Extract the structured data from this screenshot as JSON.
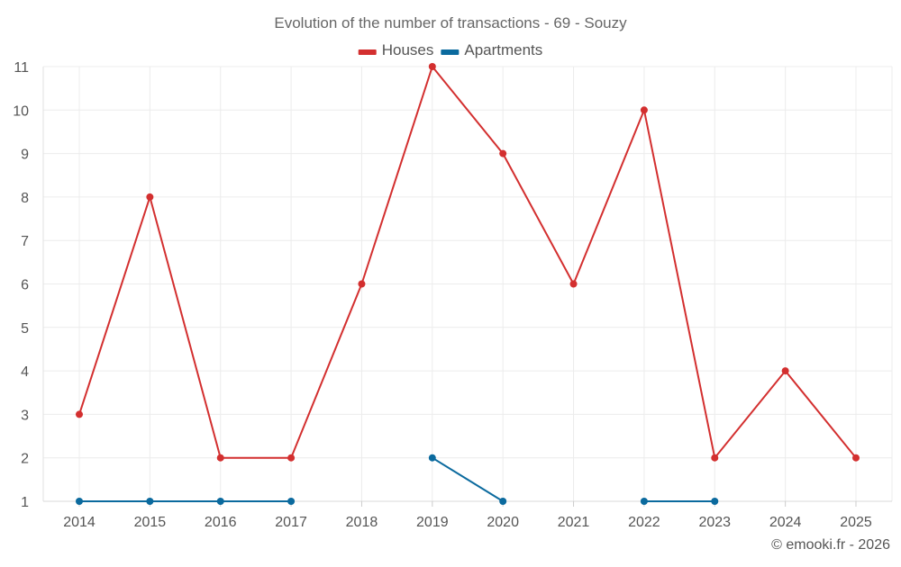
{
  "chart_data": {
    "type": "line",
    "title": "Evolution of the number of transactions - 69 - Souzy",
    "xlabel": "",
    "ylabel": "",
    "categories": [
      "2014",
      "2015",
      "2016",
      "2017",
      "2018",
      "2019",
      "2020",
      "2021",
      "2022",
      "2023",
      "2024",
      "2025"
    ],
    "ylim": [
      1,
      11
    ],
    "yticks": [
      1,
      2,
      3,
      4,
      5,
      6,
      7,
      8,
      9,
      10,
      11
    ],
    "grid": true,
    "legend_position": "top-center",
    "series": [
      {
        "name": "Houses",
        "color": "#d32f2f",
        "values": [
          3,
          8,
          2,
          2,
          6,
          11,
          9,
          6,
          10,
          2,
          4,
          2
        ]
      },
      {
        "name": "Apartments",
        "color": "#0b6a9e",
        "values": [
          1,
          1,
          1,
          1,
          null,
          2,
          1,
          null,
          1,
          1,
          null,
          null
        ]
      }
    ]
  },
  "footer": {
    "credit": "© emooki.fr - 2026"
  }
}
